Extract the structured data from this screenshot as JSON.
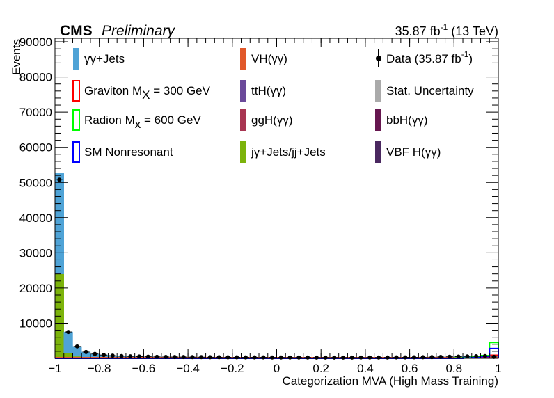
{
  "header": {
    "experiment": "CMS",
    "status": "Preliminary",
    "lumi": "35.87 fb",
    "lumi_exp": "-1",
    "energy": " (13 TeV)"
  },
  "colors": {
    "gg_jets": "#4fa3d6",
    "gj_jets": "#7cb30b",
    "vh": "#e1582a",
    "tth": "#6b4a9a",
    "ggh": "#a83552",
    "bbh": "#66164f",
    "vbf": "#4a2860",
    "stat_unc": "#aaaaaa",
    "graviton": "#ff0000",
    "radion": "#00ff00",
    "sm_nonres": "#0000ff",
    "data": "#000000"
  },
  "chart_data": {
    "type": "bar",
    "xlabel": "Categorization MVA (High Mass Training)",
    "ylabel": "Events",
    "xlim": [
      -1,
      1
    ],
    "ylim": [
      0,
      91000
    ],
    "x_ticks": [
      -1,
      -0.8,
      -0.6,
      -0.4,
      -0.2,
      0,
      0.2,
      0.4,
      0.6,
      0.8,
      1
    ],
    "x_tick_labels": [
      "−1",
      "−0.8",
      "−0.6",
      "−0.4",
      "−0.2",
      "0",
      "0.2",
      "0.4",
      "0.6",
      "0.8",
      "1"
    ],
    "y_ticks": [
      10000,
      20000,
      30000,
      40000,
      50000,
      60000,
      70000,
      80000,
      90000
    ],
    "y_tick_labels": [
      "10000",
      "20000",
      "30000",
      "40000",
      "50000",
      "60000",
      "70000",
      "80000",
      "90000"
    ],
    "bin_width": 0.04,
    "grid": false,
    "legend_position": "top",
    "series": [
      {
        "name": "γγ+Jets",
        "kind": "stack",
        "color_key": "gg_jets",
        "values": [
          28600,
          6000,
          2800,
          1500,
          1000,
          800,
          650,
          550,
          480,
          430,
          400,
          370,
          350,
          330,
          310,
          300,
          290,
          280,
          270,
          260,
          250,
          240,
          235,
          230,
          225,
          220,
          215,
          210,
          205,
          200,
          200,
          200,
          200,
          200,
          205,
          210,
          215,
          220,
          230,
          240,
          250,
          270,
          300,
          350,
          400,
          450,
          500,
          550,
          600,
          400
        ]
      },
      {
        "name": "jγ+Jets/jj+Jets",
        "kind": "stack",
        "color_key": "gj_jets",
        "values": [
          24000,
          1500,
          600,
          300,
          200,
          150,
          120,
          100,
          90,
          80,
          70,
          60,
          55,
          50,
          50,
          45,
          45,
          40,
          40,
          40,
          35,
          35,
          35,
          35,
          30,
          30,
          30,
          30,
          30,
          30,
          30,
          30,
          30,
          30,
          30,
          30,
          30,
          30,
          35,
          35,
          35,
          40,
          40,
          45,
          50,
          50,
          50,
          50,
          50,
          30
        ]
      },
      {
        "name": "Graviton M",
        "sub": "X",
        "suffix": " = 300 GeV",
        "kind": "line",
        "color_key": "graviton",
        "values": [
          0,
          0,
          0,
          0,
          0,
          0,
          0,
          0,
          0,
          0,
          0,
          0,
          0,
          0,
          0,
          0,
          0,
          0,
          0,
          0,
          0,
          0,
          0,
          0,
          0,
          0,
          0,
          0,
          0,
          0,
          0,
          0,
          0,
          0,
          0,
          0,
          0,
          0,
          0,
          0,
          0,
          0,
          0,
          0,
          0,
          0,
          100,
          200,
          400,
          900
        ]
      },
      {
        "name": "Radion M",
        "sub": "x",
        "suffix": " = 600 GeV",
        "kind": "line",
        "color_key": "radion",
        "values": [
          0,
          0,
          0,
          0,
          0,
          0,
          0,
          0,
          0,
          0,
          0,
          0,
          0,
          0,
          0,
          0,
          0,
          0,
          0,
          0,
          0,
          0,
          0,
          0,
          0,
          0,
          0,
          0,
          0,
          0,
          0,
          0,
          0,
          0,
          0,
          0,
          0,
          0,
          0,
          0,
          0,
          0,
          0,
          0,
          0,
          100,
          200,
          400,
          800,
          4500
        ]
      },
      {
        "name": "SM Nonresonant",
        "kind": "line",
        "color_key": "sm_nonres",
        "values": [
          0,
          0,
          0,
          0,
          0,
          0,
          0,
          0,
          0,
          0,
          0,
          0,
          0,
          0,
          0,
          0,
          0,
          0,
          0,
          0,
          0,
          0,
          0,
          0,
          0,
          0,
          0,
          0,
          0,
          0,
          0,
          0,
          0,
          0,
          0,
          0,
          0,
          0,
          0,
          0,
          0,
          0,
          0,
          0,
          0,
          0,
          100,
          200,
          500,
          2800
        ]
      },
      {
        "name": "Data (35.87 fb",
        "name_exp": "-1",
        "name_close": ")",
        "kind": "points",
        "color_key": "data",
        "values": [
          50800,
          7500,
          3400,
          1800,
          1250,
          950,
          770,
          650,
          570,
          510,
          470,
          430,
          405,
          380,
          360,
          345,
          335,
          320,
          310,
          300,
          285,
          275,
          270,
          265,
          255,
          250,
          245,
          240,
          235,
          230,
          230,
          230,
          230,
          230,
          235,
          240,
          245,
          250,
          265,
          275,
          285,
          310,
          340,
          395,
          450,
          500,
          550,
          600,
          650,
          430
        ]
      }
    ],
    "legend": [
      {
        "label": "γγ+Jets",
        "style": "fill",
        "color_key": "gg_jets",
        "col": 0,
        "row": 0
      },
      {
        "label": "Graviton M",
        "sub": "X",
        "suffix": " = 300 GeV",
        "style": "line",
        "color_key": "graviton",
        "col": 0,
        "row": 1
      },
      {
        "label": "Radion M",
        "sub": "x",
        "suffix": " = 600 GeV",
        "style": "line",
        "color_key": "radion",
        "col": 0,
        "row": 2
      },
      {
        "label": "SM Nonresonant",
        "style": "line",
        "color_key": "sm_nonres",
        "col": 0,
        "row": 3
      },
      {
        "label": "VH(γγ)",
        "style": "fill",
        "color_key": "vh",
        "col": 1,
        "row": 0
      },
      {
        "label": "tt̄H(γγ)",
        "style": "fill",
        "color_key": "tth",
        "col": 1,
        "row": 1
      },
      {
        "label": "ggH(γγ)",
        "style": "fill",
        "color_key": "ggh",
        "col": 1,
        "row": 2
      },
      {
        "label": "jγ+Jets/jj+Jets",
        "style": "fill",
        "color_key": "gj_jets",
        "col": 1,
        "row": 3
      },
      {
        "label": "Data (35.87 fb",
        "exp": "-1",
        "close": ")",
        "style": "marker",
        "color_key": "data",
        "col": 2,
        "row": 0
      },
      {
        "label": "Stat. Uncertainty",
        "style": "fill",
        "color_key": "stat_unc",
        "col": 2,
        "row": 1
      },
      {
        "label": "bbH(γγ)",
        "style": "fill",
        "color_key": "bbh",
        "col": 2,
        "row": 2
      },
      {
        "label": "VBF H(γγ)",
        "style": "fill",
        "color_key": "vbf",
        "col": 2,
        "row": 3
      }
    ]
  }
}
